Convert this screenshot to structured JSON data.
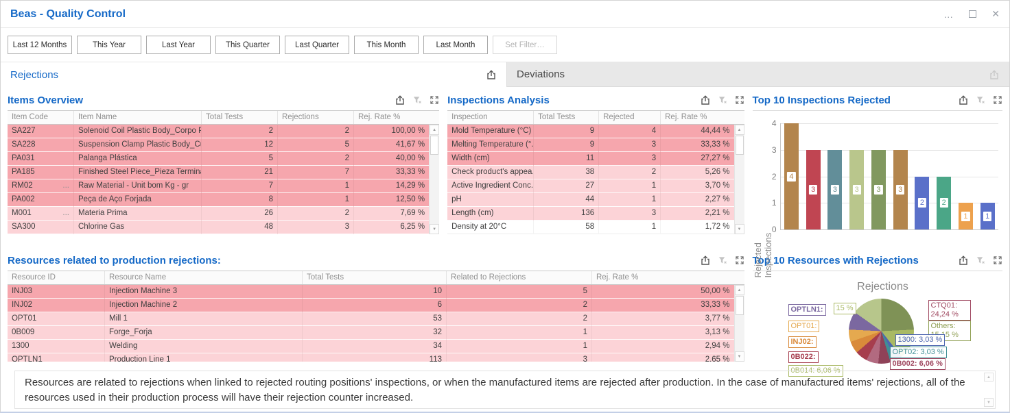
{
  "window": {
    "title": "Beas - Quality Control",
    "more": "…",
    "close": "✕"
  },
  "filterbar": {
    "buttons": [
      "Last 12 Months",
      "This Year",
      "Last Year",
      "This Quarter",
      "Last Quarter",
      "This Month",
      "Last Month"
    ],
    "set_filter": "Set Filter…"
  },
  "tabs": {
    "rejections": "Rejections",
    "deviations": "Deviations"
  },
  "items_overview": {
    "title": "Items Overview",
    "columns": {
      "c1": "Item Code",
      "c2": "Item Name",
      "c3": "Total Tests",
      "c4": "Rejections",
      "c5": "Rej. Rate %"
    },
    "rows": [
      {
        "code": "SA227",
        "dots": "",
        "name": "Solenoid Coil Plastic Body_Corpo Plá...",
        "tests": "2",
        "rej": "2",
        "rate": "100,00 %",
        "tone": "tone-dark"
      },
      {
        "code": "SA228",
        "dots": "",
        "name": "Suspension Clamp Plastic Body_Cue...",
        "tests": "12",
        "rej": "5",
        "rate": "41,67 %",
        "tone": "tone-dark"
      },
      {
        "code": "PA031",
        "dots": "",
        "name": "Palanga Plástica",
        "tests": "5",
        "rej": "2",
        "rate": "40,00 %",
        "tone": "tone-dark"
      },
      {
        "code": "PA185",
        "dots": "",
        "name": "Finished Steel Piece_Pieza Terminad...",
        "tests": "21",
        "rej": "7",
        "rate": "33,33 %",
        "tone": "tone-dark"
      },
      {
        "code": "RM02",
        "dots": "...",
        "name": "Raw Material - Unit bom Kg - gr",
        "tests": "7",
        "rej": "1",
        "rate": "14,29 %",
        "tone": "tone-dark"
      },
      {
        "code": "PA002",
        "dots": "",
        "name": "Peça de Aço Forjada",
        "tests": "8",
        "rej": "1",
        "rate": "12,50 %",
        "tone": "tone-dark"
      },
      {
        "code": "M001",
        "dots": "...",
        "name": "Materia Prima",
        "tests": "26",
        "rej": "2",
        "rate": "7,69 %",
        "tone": "tone-light"
      },
      {
        "code": "SA300",
        "dots": "",
        "name": "Chlorine Gas",
        "tests": "48",
        "rej": "3",
        "rate": "6,25 %",
        "tone": "tone-light"
      }
    ]
  },
  "inspections_analysis": {
    "title": "Inspections Analysis",
    "columns": {
      "c1": "Inspection",
      "c2": "Total Tests",
      "c3": "Rejected",
      "c4": "Rej. Rate %"
    },
    "rows": [
      {
        "name": "Mold Temperature (°C)",
        "tests": "9",
        "rej": "4",
        "rate": "44,44 %",
        "tone": "tone-dark"
      },
      {
        "name": "Melting Temperature (°...",
        "tests": "9",
        "rej": "3",
        "rate": "33,33 %",
        "tone": "tone-dark"
      },
      {
        "name": "Width (cm)",
        "tests": "11",
        "rej": "3",
        "rate": "27,27 %",
        "tone": "tone-dark"
      },
      {
        "name": "Check product's appea...",
        "tests": "38",
        "rej": "2",
        "rate": "5,26 %",
        "tone": "tone-light"
      },
      {
        "name": "Active Ingredient Conc...",
        "tests": "27",
        "rej": "1",
        "rate": "3,70 %",
        "tone": "tone-light"
      },
      {
        "name": "pH",
        "tests": "44",
        "rej": "1",
        "rate": "2,27 %",
        "tone": "tone-light"
      },
      {
        "name": "Length (cm)",
        "tests": "136",
        "rej": "3",
        "rate": "2,21 %",
        "tone": "tone-light"
      },
      {
        "name": "Density at 20°C",
        "tests": "58",
        "rej": "1",
        "rate": "1,72 %",
        "tone": "tone-white"
      }
    ]
  },
  "top10_inspections": {
    "title": "Top 10 Inspections Rejected",
    "chart": {
      "type": "bar",
      "ylabel": "Rejected Inspections",
      "ymax": 4,
      "yticks": [
        4,
        3,
        2,
        1,
        0
      ],
      "values": [
        4,
        3,
        3,
        3,
        3,
        3,
        2,
        2,
        1,
        1
      ],
      "colors": [
        "#b3854d",
        "#c04552",
        "#628e99",
        "#b9c68c",
        "#81985f",
        "#b3854d",
        "#5a70c9",
        "#4ba687",
        "#eda14d",
        "#5a70c9"
      ]
    }
  },
  "resources": {
    "title": "Resources related to production rejections:",
    "columns": {
      "c1": "Resource ID",
      "c2": "Resource Name",
      "c3": "Total Tests",
      "c4": "Related to Rejections",
      "c5": "Rej. Rate %"
    },
    "rows": [
      {
        "id": "INJ03",
        "name": "Injection Machine 3",
        "tests": "10",
        "rej": "5",
        "rate": "50,00 %",
        "tone": "tone-dark"
      },
      {
        "id": "INJ02",
        "name": "Injection Machine 2",
        "tests": "6",
        "rej": "2",
        "rate": "33,33 %",
        "tone": "tone-dark"
      },
      {
        "id": "OPT01",
        "name": "Mill 1",
        "tests": "53",
        "rej": "2",
        "rate": "3,77 %",
        "tone": "tone-light"
      },
      {
        "id": "0B009",
        "name": "Forge_Forja",
        "tests": "32",
        "rej": "1",
        "rate": "3,13 %",
        "tone": "tone-light"
      },
      {
        "id": "1300",
        "name": "Welding",
        "tests": "34",
        "rej": "1",
        "rate": "2,94 %",
        "tone": "tone-light"
      },
      {
        "id": "OPTLN1",
        "name": "Production Line 1",
        "tests": "113",
        "rej": "3",
        "rate": "2,65 %",
        "tone": "tone-light"
      }
    ]
  },
  "top10_resources": {
    "title": "Top 10 Resources with Rejections",
    "chart": {
      "type": "pie",
      "title": "Rejections",
      "slices": [
        {
          "name": "CTQ01",
          "pct": 24.24,
          "color": "#7f9256"
        },
        {
          "name": "Others",
          "pct": 15.15,
          "color": "#a9b964"
        },
        {
          "name": "1300",
          "pct": 3.03,
          "color": "#4e66b0"
        },
        {
          "name": "OPT02",
          "pct": 3.03,
          "color": "#3f8f96"
        },
        {
          "name": "0B002",
          "pct": 6.06,
          "color": "#8f4258"
        },
        {
          "name": "0B014",
          "pct": 6.06,
          "color": "#b26a80"
        },
        {
          "name": "0B022",
          "pct": 6.06,
          "color": "#a63d4d"
        },
        {
          "name": "INJ02",
          "pct": 6.06,
          "color": "#d98a3a"
        },
        {
          "name": "OPT01",
          "pct": 6.06,
          "color": "#e5a94f"
        },
        {
          "name": "OPTLN1",
          "pct": 9.09,
          "color": "#7b68a0"
        },
        {
          "name": "",
          "pct": 15.16,
          "color": "#b7c68b"
        }
      ],
      "labels": [
        {
          "text": "15 %",
          "color": "#a9b964"
        },
        {
          "text": "OPTLN1:",
          "color": "#7b68a0"
        },
        {
          "text": "OPT01:",
          "color": "#e5a94f"
        },
        {
          "text": "INJ02:",
          "color": "#d98a3a"
        },
        {
          "text": "0B022:",
          "color": "#a63d4d"
        },
        {
          "text": "0B014: 6,06 %",
          "color": "#a9b964"
        },
        {
          "text": "CTQ01: 24,24 %",
          "color": "#a04961"
        },
        {
          "text": "Others: 15,15 %",
          "color": "#8f9f53"
        },
        {
          "text": "1300: 3,03 %",
          "color": "#4e66b0"
        },
        {
          "text": "OPT02: 3,03 %",
          "color": "#3f8f96"
        },
        {
          "text": "0B002: 6,06 %",
          "color": "#a04961"
        }
      ]
    }
  },
  "footer": {
    "text": "Resources are related to rejections when linked to rejected routing positions' inspections, or when the manufactured items are rejected after production. In the case of manufactured items' rejections, all of the resources used in their production process will have their rejection counter increased."
  }
}
